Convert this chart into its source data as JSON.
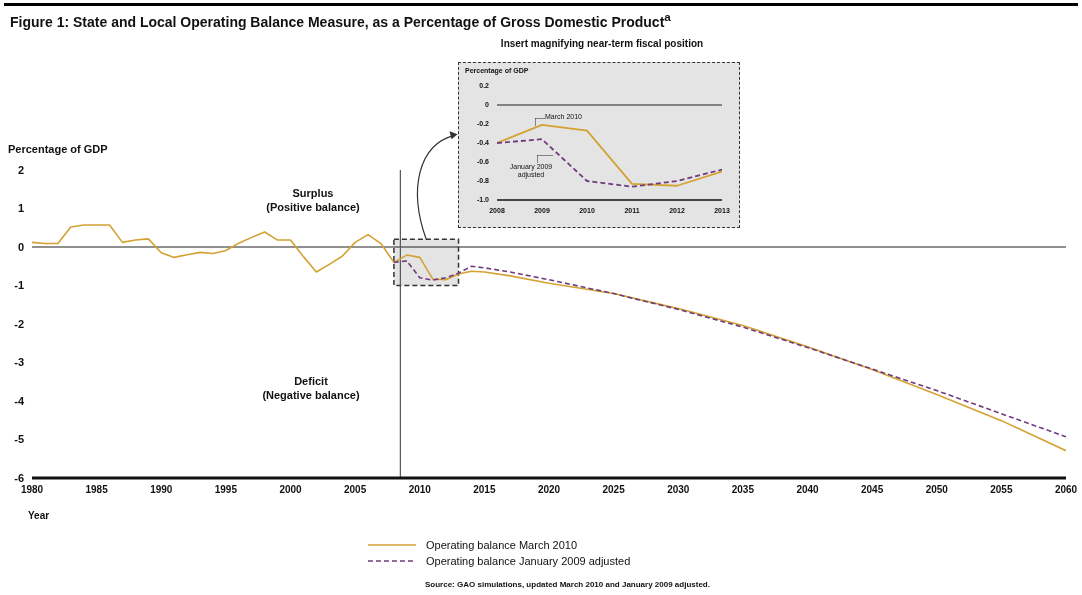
{
  "chart_data": [
    {
      "type": "line",
      "title": "Figure 1: State and Local Operating Balance Measure, as a Percentage of Gross Domestic Product$^{a}$",
      "xlabel": "Year",
      "ylabel": "Percentage of GDP",
      "xlim": [
        1980,
        2060
      ],
      "xticks": [
        1980,
        1985,
        1990,
        1995,
        2000,
        2005,
        2010,
        2015,
        2020,
        2025,
        2030,
        2035,
        2040,
        2045,
        2050,
        2055,
        2060
      ],
      "ylim": [
        -6,
        2
      ],
      "yticks": [
        -6,
        -5,
        -4,
        -3,
        -2,
        -1,
        0,
        1,
        2
      ],
      "legend": "bottom",
      "ref_lines": [
        {
          "axis": "y",
          "value": 0,
          "color": "#222222"
        },
        {
          "axis": "x",
          "value": 2008.5,
          "color": "#555555"
        }
      ],
      "annotations": [
        "Surplus\n(Positive balance)",
        "Deficit\n(Negative balance)",
        "Source: GAO simulations, updated March 2010 and January 2009 adjusted."
      ],
      "series": [
        {
          "name": "Operating balance March 2010",
          "color": "#d4a233",
          "line_style": "solid",
          "x": [
            1980,
            1981,
            1982,
            1983,
            1984,
            1985,
            1986,
            1987,
            1988,
            1989,
            1990,
            1991,
            1992,
            1993,
            1994,
            1995,
            1996,
            1997,
            1998,
            1999,
            2000,
            2001,
            2002,
            2003,
            2004,
            2005,
            2006,
            2007,
            2008,
            2009,
            2010,
            2011,
            2012,
            2013,
            2014,
            2015,
            2017,
            2020,
            2025,
            2030,
            2035,
            2040,
            2045,
            2050,
            2055,
            2060
          ],
          "values": [
            0.12,
            0.09,
            0.09,
            0.52,
            0.57,
            0.57,
            0.57,
            0.12,
            0.18,
            0.21,
            -0.15,
            -0.27,
            -0.2,
            -0.14,
            -0.17,
            -0.09,
            0.1,
            0.25,
            0.39,
            0.18,
            0.18,
            -0.25,
            -0.65,
            -0.45,
            -0.24,
            0.12,
            0.32,
            0.09,
            -0.4,
            -0.21,
            -0.27,
            -0.83,
            -0.85,
            -0.7,
            -0.63,
            -0.65,
            -0.75,
            -0.94,
            -1.21,
            -1.6,
            -2.04,
            -2.59,
            -3.18,
            -3.83,
            -4.51,
            -5.29
          ]
        },
        {
          "name": "Operating balance January 2009 adjusted",
          "color": "#6e3c7e",
          "line_style": "dashed",
          "x": [
            2008,
            2009,
            2010,
            2011,
            2012,
            2013,
            2014,
            2015,
            2017,
            2020,
            2025,
            2030,
            2035,
            2040,
            2045,
            2050,
            2055,
            2060
          ],
          "values": [
            -0.4,
            -0.36,
            -0.8,
            -0.86,
            -0.8,
            -0.68,
            -0.5,
            -0.54,
            -0.65,
            -0.85,
            -1.21,
            -1.62,
            -2.08,
            -2.61,
            -3.17,
            -3.73,
            -4.33,
            -4.93
          ]
        }
      ]
    },
    {
      "type": "line",
      "title": "Insert magnifying near-term fiscal position",
      "ylabel": "Percentage of GDP",
      "xlim": [
        2008,
        2013
      ],
      "xticks": [
        2008,
        2009,
        2010,
        2011,
        2012,
        2013
      ],
      "ylim": [
        -1,
        0.2
      ],
      "yticks": [
        {
          "value": -1,
          "label": "-1.0"
        },
        -0.8,
        -0.6,
        -0.4,
        -0.2,
        0,
        0.2
      ],
      "ref_lines": [
        {
          "axis": "y",
          "value": 0,
          "color": "#222222"
        }
      ],
      "series": [
        {
          "name": "March 2010",
          "color": "#d4a233",
          "line_style": "solid",
          "x": [
            2008,
            2009,
            2010,
            2011,
            2012,
            2013
          ],
          "values": [
            -0.4,
            -0.21,
            -0.27,
            -0.83,
            -0.85,
            -0.7
          ]
        },
        {
          "name": "January 2009 adjusted",
          "color": "#6e3c7e",
          "line_style": "dashed",
          "x": [
            2008,
            2009,
            2010,
            2011,
            2012,
            2013
          ],
          "values": [
            -0.4,
            -0.36,
            -0.8,
            -0.86,
            -0.8,
            -0.68
          ]
        }
      ]
    }
  ]
}
